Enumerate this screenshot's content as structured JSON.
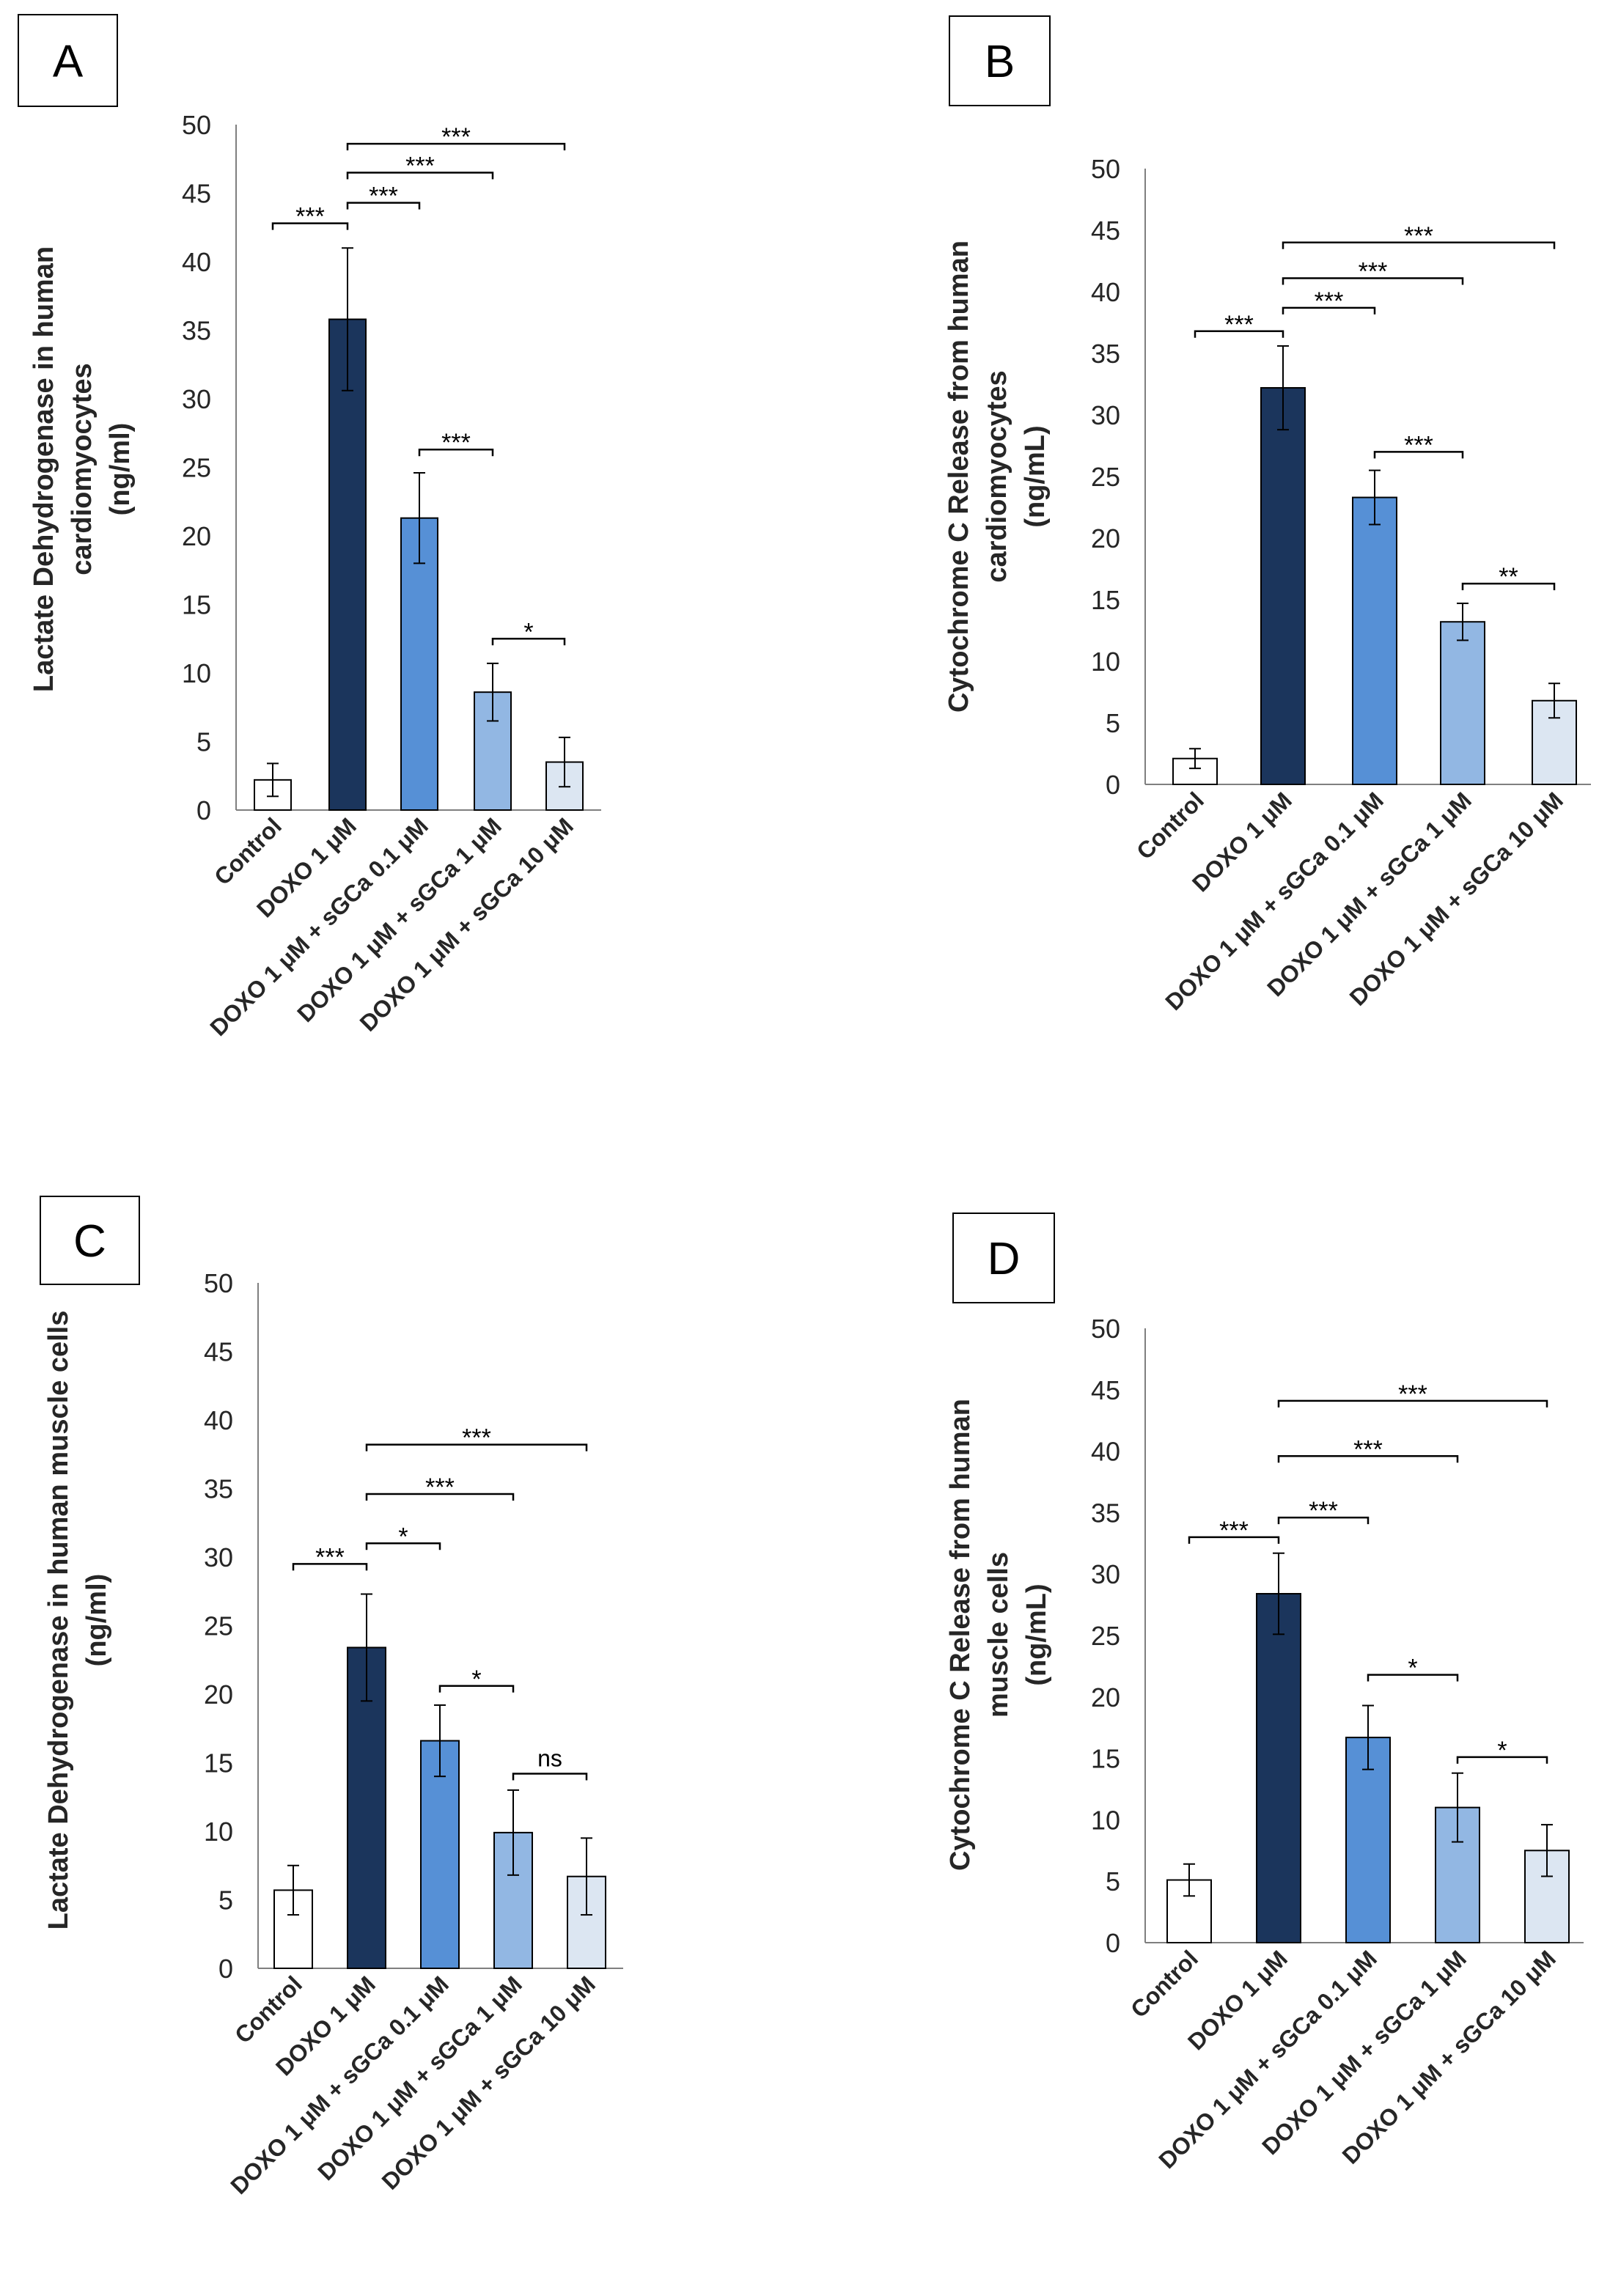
{
  "chart_data": [
    {
      "type": "bar",
      "panel": "A",
      "ylabel": [
        "Lactate Dehydrogenase in human",
        "cardiomyocytes",
        "(ng/ml)"
      ],
      "ylim": [
        0,
        50
      ],
      "yticks": [
        "0",
        "5",
        "10",
        "15",
        "20",
        "25",
        "30",
        "35",
        "40",
        "45",
        "50"
      ],
      "categories": [
        "Control",
        "DOXO 1 μM",
        "DOXO 1 μM + sGCa 0.1 μM",
        "DOXO 1 μM + sGCa  1 μM",
        "DOXO 1 μM + sGCa 10 μM"
      ],
      "values": [
        2.2,
        35.8,
        21.3,
        8.6,
        3.5
      ],
      "errors": [
        1.2,
        5.2,
        3.3,
        2.1,
        1.8
      ],
      "colors": [
        "#ffffff",
        "#1b355c",
        "#5690d6",
        "#92b7e3",
        "#dce6f2"
      ],
      "significance": [
        {
          "from": 0,
          "to": 1,
          "y": 42.8,
          "label": "***"
        },
        {
          "from": 1,
          "to": 2,
          "y": 44.3,
          "label": "***"
        },
        {
          "from": 1,
          "to": 3,
          "y": 46.5,
          "label": "***"
        },
        {
          "from": 1,
          "to": 4,
          "y": 48.6,
          "label": "***"
        },
        {
          "from": 2,
          "to": 3,
          "y": 26.3,
          "label": "***"
        },
        {
          "from": 3,
          "to": 4,
          "y": 12.5,
          "label": "*"
        }
      ]
    },
    {
      "type": "bar",
      "panel": "B",
      "ylabel": [
        "Cytochrome C Release from human",
        "cardiomyocytes",
        "(ng/mL)"
      ],
      "ylim": [
        0,
        50
      ],
      "yticks": [
        "0",
        "5",
        "10",
        "15",
        "20",
        "25",
        "30",
        "35",
        "40",
        "45",
        "50"
      ],
      "categories": [
        "Control",
        "DOXO 1 μM",
        "DOXO 1 μM + sGCa 0.1 μM",
        "DOXO 1 μM + sGCa  1 μM",
        "DOXO 1 μM + sGCa 10 μM"
      ],
      "values": [
        2.1,
        32.2,
        23.3,
        13.2,
        6.8
      ],
      "errors": [
        0.8,
        3.4,
        2.2,
        1.5,
        1.4
      ],
      "colors": [
        "#ffffff",
        "#1b355c",
        "#5690d6",
        "#92b7e3",
        "#dce6f2"
      ],
      "significance": [
        {
          "from": 0,
          "to": 1,
          "y": 36.8,
          "label": "***"
        },
        {
          "from": 1,
          "to": 2,
          "y": 38.7,
          "label": "***"
        },
        {
          "from": 1,
          "to": 3,
          "y": 41.1,
          "label": "***"
        },
        {
          "from": 1,
          "to": 4,
          "y": 44.0,
          "label": "***"
        },
        {
          "from": 2,
          "to": 3,
          "y": 27.0,
          "label": "***"
        },
        {
          "from": 3,
          "to": 4,
          "y": 16.3,
          "label": "**"
        }
      ]
    },
    {
      "type": "bar",
      "panel": "C",
      "ylabel": [
        "Lactate Dehydrogenase in human muscle cells",
        "(ng/ml)"
      ],
      "ylim": [
        0,
        50
      ],
      "yticks": [
        "0",
        "5",
        "10",
        "15",
        "20",
        "25",
        "30",
        "35",
        "40",
        "45",
        "50"
      ],
      "categories": [
        "Control",
        "DOXO 1 μM",
        "DOXO 1 μM + sGCa 0.1 μM",
        "DOXO 1 μM + sGCa  1 μM",
        "DOXO 1 μM + sGCa 10 μM"
      ],
      "values": [
        5.7,
        23.4,
        16.6,
        9.9,
        6.7
      ],
      "errors": [
        1.8,
        3.9,
        2.6,
        3.1,
        2.8
      ],
      "colors": [
        "#ffffff",
        "#1b355c",
        "#5690d6",
        "#92b7e3",
        "#dce6f2"
      ],
      "significance": [
        {
          "from": 0,
          "to": 1,
          "y": 29.5,
          "label": "***"
        },
        {
          "from": 1,
          "to": 2,
          "y": 31.0,
          "label": "*"
        },
        {
          "from": 1,
          "to": 3,
          "y": 34.6,
          "label": "***"
        },
        {
          "from": 1,
          "to": 4,
          "y": 38.2,
          "label": "***"
        },
        {
          "from": 2,
          "to": 3,
          "y": 20.6,
          "label": "*"
        },
        {
          "from": 3,
          "to": 4,
          "y": 14.2,
          "label": "ns"
        }
      ]
    },
    {
      "type": "bar",
      "panel": "D",
      "ylabel": [
        "Cytochrome C Release from human",
        "muscle cells",
        "(ng/mL)"
      ],
      "ylim": [
        0,
        50
      ],
      "yticks": [
        "0",
        "5",
        "10",
        "15",
        "20",
        "25",
        "30",
        "35",
        "40",
        "45",
        "50"
      ],
      "categories": [
        "Control",
        "DOXO 1 μM",
        "DOXO 1 μM + sGCa 0.1 μM",
        "DOXO 1 μM + sGCa  1 μM",
        "DOXO 1 μM + sGCa 10 μM"
      ],
      "values": [
        5.1,
        28.4,
        16.7,
        11.0,
        7.5
      ],
      "errors": [
        1.3,
        3.3,
        2.6,
        2.8,
        2.1
      ],
      "colors": [
        "#ffffff",
        "#1b355c",
        "#5690d6",
        "#92b7e3",
        "#dce6f2"
      ],
      "significance": [
        {
          "from": 0,
          "to": 1,
          "y": 33.0,
          "label": "***"
        },
        {
          "from": 1,
          "to": 2,
          "y": 34.6,
          "label": "***"
        },
        {
          "from": 1,
          "to": 3,
          "y": 39.6,
          "label": "***"
        },
        {
          "from": 1,
          "to": 4,
          "y": 44.1,
          "label": "***"
        },
        {
          "from": 2,
          "to": 3,
          "y": 21.8,
          "label": "*"
        },
        {
          "from": 3,
          "to": 4,
          "y": 15.1,
          "label": "*"
        }
      ]
    }
  ]
}
